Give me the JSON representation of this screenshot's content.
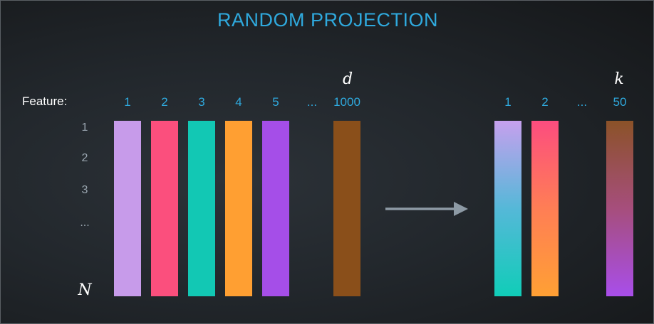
{
  "title": "RANDOM PROJECTION",
  "feature_label": "Feature:",
  "left_matrix": {
    "dim_symbol": "d",
    "columns": [
      "1",
      "2",
      "3",
      "4",
      "5",
      "...",
      "1000"
    ],
    "colors": [
      "#c79bea",
      "#fb4f7d",
      "#12c8b4",
      "#ff9f32",
      "#a54ee8",
      "#8a4f1a"
    ]
  },
  "rows": {
    "labels": [
      "1",
      "2",
      "3",
      "..."
    ],
    "symbol": "N"
  },
  "right_matrix": {
    "dim_symbol": "k",
    "columns": [
      "1",
      "2",
      "...",
      "50"
    ],
    "gradients": [
      [
        "#c6a0ee",
        "#55b8d8",
        "#10cdb8"
      ],
      [
        "#fc4d7f",
        "#ff7e55",
        "#ffa034"
      ],
      [
        "#8b5228",
        "#a64e7c",
        "#a84eea"
      ]
    ]
  },
  "colors": {
    "accent": "#2fa9dd",
    "arrow": "#8d9aa5"
  }
}
